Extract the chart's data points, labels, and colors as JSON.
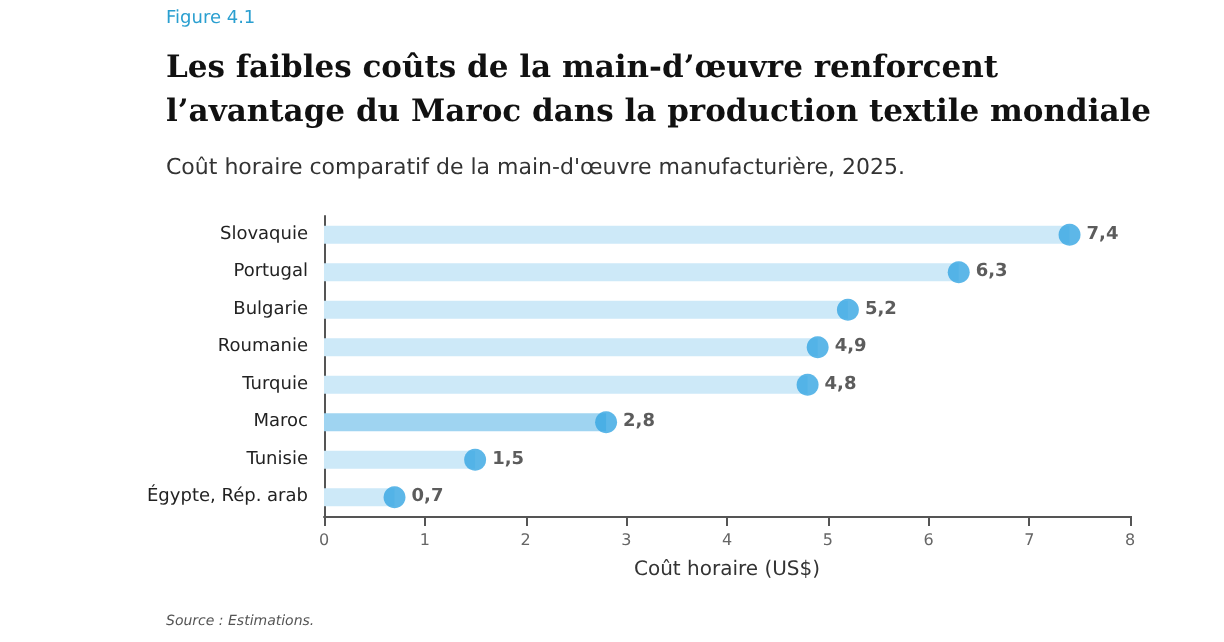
{
  "chart_data": {
    "type": "bar",
    "orientation": "horizontal",
    "title": "Les faibles coûts de la main-d’œuvre renforcent l’avantage du Maroc dans la production textile mondiale",
    "subtitle": "Coût horaire comparatif de la main-d'œuvre manufacturière, 2025.",
    "annotations": [
      "Figure 4.1",
      "Source : Estimations."
    ],
    "xlabel": "Coût horaire (US$)",
    "categories": [
      "Slovaquie",
      "Portugal",
      "Bulgarie",
      "Roumanie",
      "Turquie",
      "Maroc",
      "Tunisie",
      "Égypte, Rép. arab"
    ],
    "series": [
      {
        "type": "bar",
        "colors": [
          "#cde9f8",
          "#cde9f8",
          "#cde9f8",
          "#cde9f8",
          "#cde9f8",
          "#9fd4f1",
          "#cde9f8",
          "#cde9f8"
        ],
        "values": [
          7.4,
          6.3,
          5.2,
          4.9,
          4.8,
          2.8,
          1.5,
          0.7
        ]
      },
      {
        "type": "scatter",
        "color": "#35a5e2",
        "values": [
          7.4,
          6.3,
          5.2,
          4.9,
          4.8,
          2.8,
          1.5,
          0.7
        ],
        "value_labels": [
          "7,4",
          "6,3",
          "5,2",
          "4,9",
          "4,8",
          "2,8",
          "1,5",
          "0,7"
        ]
      }
    ],
    "marker": "circle",
    "xlim": [
      0,
      8
    ],
    "xticks": [
      0,
      1,
      2,
      3,
      4,
      5,
      6,
      7,
      8
    ],
    "grid": false
  }
}
